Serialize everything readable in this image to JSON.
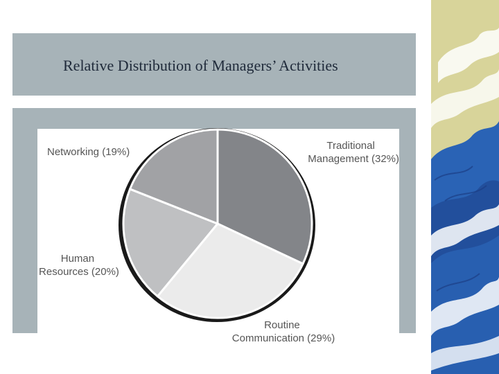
{
  "slide": {
    "title": "Relative Distribution of Managers’ Activities"
  },
  "colors": {
    "panel": "#a7b3b8",
    "wave_sky": "#d8d49a",
    "wave_blue": "#2a63b5",
    "wave_dark": "#1c3f86"
  },
  "icons": {
    "decoration": "wave-icon"
  },
  "chart_data": {
    "type": "pie",
    "title": "",
    "slices": [
      {
        "label_lines": [
          "Traditional",
          "Management (32%)"
        ],
        "value": 32,
        "color": "#838589"
      },
      {
        "label_lines": [
          "Routine",
          "Communication (29%)"
        ],
        "value": 29,
        "color": "#ebebeb"
      },
      {
        "label_lines": [
          "Human",
          "Resources (20%)"
        ],
        "value": 20,
        "color": "#bfc0c2"
      },
      {
        "label_lines": [
          "Networking (19%)"
        ],
        "value": 19,
        "color": "#a1a2a5"
      }
    ],
    "start": "top, clockwise",
    "legend": "none (labels beside slices)"
  }
}
